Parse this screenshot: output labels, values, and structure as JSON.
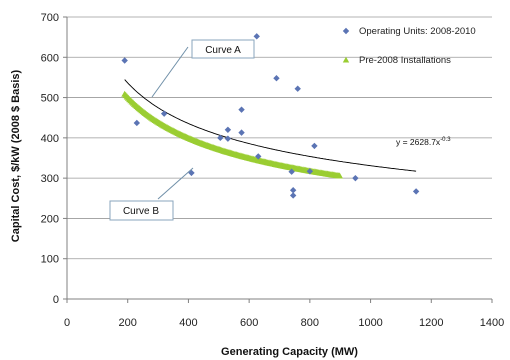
{
  "chart_data": {
    "type": "scatter",
    "xlabel": "Generating Capacity (MW)",
    "ylabel": "Capital Cost, $/kW (2008 $ Basis)",
    "xlim": [
      0,
      1400
    ],
    "ylim": [
      0,
      700
    ],
    "xticks": [
      0,
      200,
      400,
      600,
      800,
      1000,
      1200,
      1400
    ],
    "yticks": [
      0,
      100,
      200,
      300,
      400,
      500,
      600,
      700
    ],
    "grid": "horizontal",
    "legend_position": "top-right",
    "series": [
      {
        "name": "Operating Units: 2008-2010",
        "marker": "diamond",
        "color": "#5b74b4",
        "points": [
          [
            190,
            592
          ],
          [
            230,
            437
          ],
          [
            320,
            460
          ],
          [
            410,
            313
          ],
          [
            505,
            400
          ],
          [
            530,
            420
          ],
          [
            530,
            398
          ],
          [
            575,
            470
          ],
          [
            575,
            413
          ],
          [
            625,
            652
          ],
          [
            630,
            354
          ],
          [
            690,
            548
          ],
          [
            740,
            316
          ],
          [
            745,
            270
          ],
          [
            745,
            257
          ],
          [
            760,
            522
          ],
          [
            800,
            317
          ],
          [
            815,
            380
          ],
          [
            950,
            300
          ],
          [
            1150,
            267
          ]
        ]
      },
      {
        "name": "Pre-2008 Installations",
        "marker": "triangle",
        "color": "#9acd32",
        "curve": {
          "form": "power",
          "coefficient": 2628.7,
          "exponent": -0.3,
          "offset": -36,
          "x_range": [
            190,
            900
          ]
        }
      }
    ],
    "trendline": {
      "form": "power",
      "coefficient": 2628.7,
      "exponent": -0.3,
      "x_range": [
        190,
        1150
      ],
      "color": "#000000"
    },
    "annotations": {
      "equation": {
        "base": "y = 2628.7x",
        "exponent": "-0.3"
      },
      "curve_a": "Curve A",
      "curve_b": "Curve B"
    }
  }
}
